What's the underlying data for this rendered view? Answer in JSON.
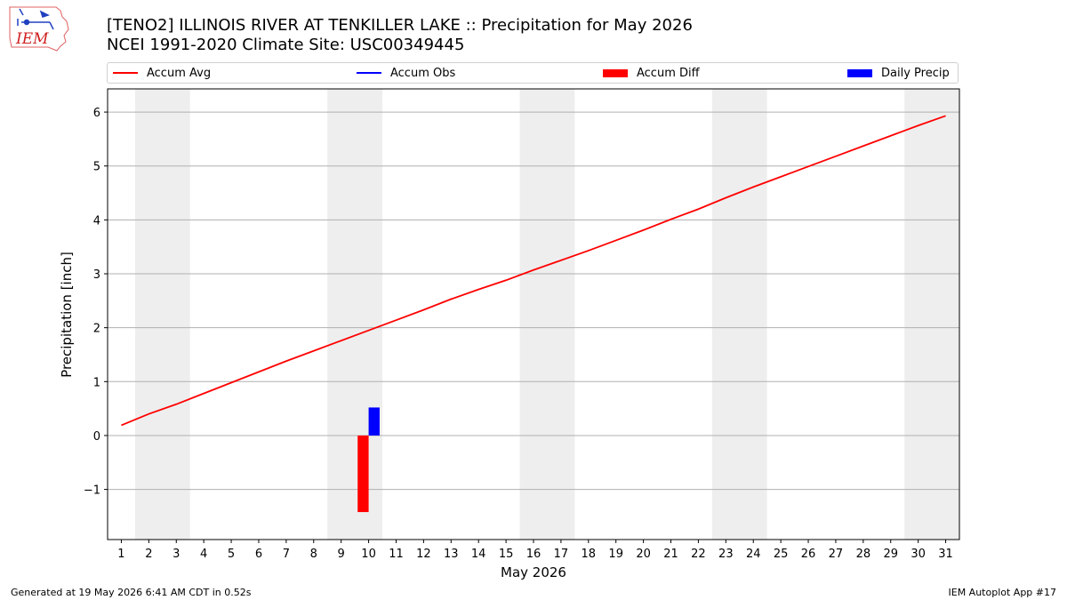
{
  "logo": {
    "text": "IEM"
  },
  "header": {
    "title_line1": "[TENO2] ILLINOIS RIVER  AT TENKILLER LAKE :: Precipitation for May 2026",
    "title_line2": "NCEI 1991-2020 Climate Site: USC00349445"
  },
  "legend": {
    "accum_avg": "Accum Avg",
    "accum_obs": "Accum Obs",
    "accum_diff": "Accum Diff",
    "daily_precip": "Daily Precip"
  },
  "colors": {
    "accum_avg": "#ff0000",
    "accum_obs": "#0000ff",
    "accum_diff": "#ff0000",
    "daily_precip": "#0000ff",
    "weekend_shade": "#eeeeee",
    "grid": "#b0b0b0"
  },
  "footer": {
    "left": "Generated at 19 May 2026 6:41 AM CDT in 0.52s",
    "right": "IEM Autoplot App #17"
  },
  "chart_data": {
    "type": "line",
    "xlabel": "May 2026",
    "ylabel": "Precipitation [inch]",
    "xlim": [
      0.5,
      31.5
    ],
    "ylim": [
      -1.93,
      6.43
    ],
    "x_ticks": [
      1,
      2,
      3,
      4,
      5,
      6,
      7,
      8,
      9,
      10,
      11,
      12,
      13,
      14,
      15,
      16,
      17,
      18,
      19,
      20,
      21,
      22,
      23,
      24,
      25,
      26,
      27,
      28,
      29,
      30,
      31
    ],
    "y_ticks": [
      -1,
      0,
      1,
      2,
      3,
      4,
      5,
      6
    ],
    "y_tick_labels": [
      "−1",
      "0",
      "1",
      "2",
      "3",
      "4",
      "5",
      "6"
    ],
    "grid": "horizontal",
    "legend_position": "top",
    "weekend_shading": [
      [
        2,
        3
      ],
      [
        9,
        10
      ],
      [
        16,
        17
      ],
      [
        23,
        24
      ],
      [
        30,
        31
      ]
    ],
    "series": [
      {
        "name": "Accum Avg",
        "kind": "line",
        "x": [
          1,
          2,
          3,
          4,
          5,
          6,
          7,
          8,
          9,
          10,
          11,
          12,
          13,
          14,
          15,
          16,
          17,
          18,
          19,
          20,
          21,
          22,
          23,
          24,
          25,
          26,
          27,
          28,
          29,
          30,
          31
        ],
        "y": [
          0.19,
          0.4,
          0.58,
          0.78,
          0.98,
          1.18,
          1.38,
          1.57,
          1.76,
          1.95,
          2.14,
          2.33,
          2.53,
          2.71,
          2.88,
          3.07,
          3.25,
          3.43,
          3.62,
          3.81,
          4.01,
          4.2,
          4.41,
          4.61,
          4.8,
          4.99,
          5.18,
          5.37,
          5.56,
          5.75,
          5.93
        ]
      },
      {
        "name": "Accum Obs",
        "kind": "line",
        "x": [],
        "y": []
      },
      {
        "name": "Accum Diff",
        "kind": "bar",
        "x": [
          10
        ],
        "y": [
          -1.42
        ]
      },
      {
        "name": "Daily Precip",
        "kind": "bar",
        "x": [
          10
        ],
        "y": [
          0.52
        ]
      }
    ]
  }
}
